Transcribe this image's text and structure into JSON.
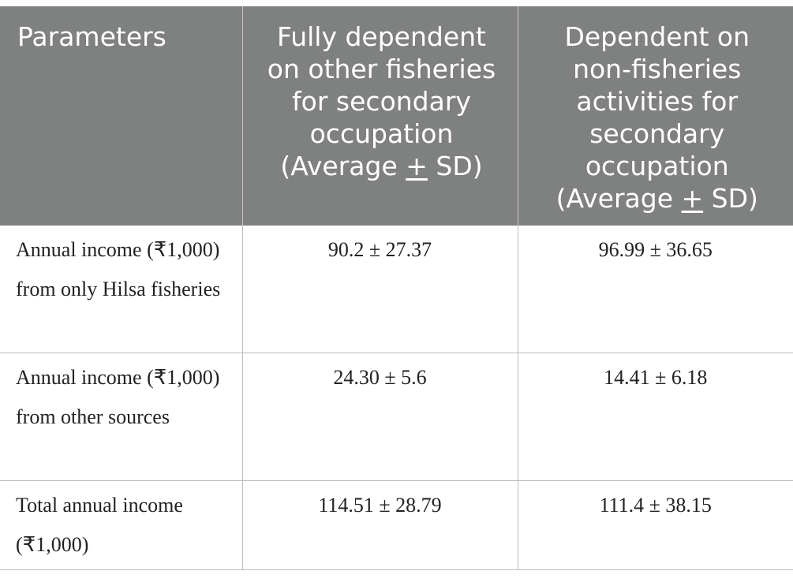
{
  "table": {
    "headers": {
      "parameters": "Parameters",
      "col2_text": "Fully dependent on other fisheries for secondary occupation (Average ",
      "col2_pm": "+",
      "col2_end": " SD)",
      "col3_text": "Dependent on non-fisheries activities for secondary occupation (Average ",
      "col3_pm": "+",
      "col3_end": " SD)"
    },
    "rows": [
      {
        "parameter": "Annual income (₹1,000) from only Hilsa fisheries",
        "fully_dependent": "90.2 ± 27.37",
        "non_fisheries": "96.99 ± 36.65"
      },
      {
        "parameter": "Annual income (₹1,000) from other sources",
        "fully_dependent": "24.30 ± 5.6",
        "non_fisheries": "14.41 ± 6.18"
      },
      {
        "parameter": "Total annual income (₹1,000)",
        "fully_dependent": "114.51 ± 28.79",
        "non_fisheries": "111.4 ± 38.15"
      }
    ]
  }
}
